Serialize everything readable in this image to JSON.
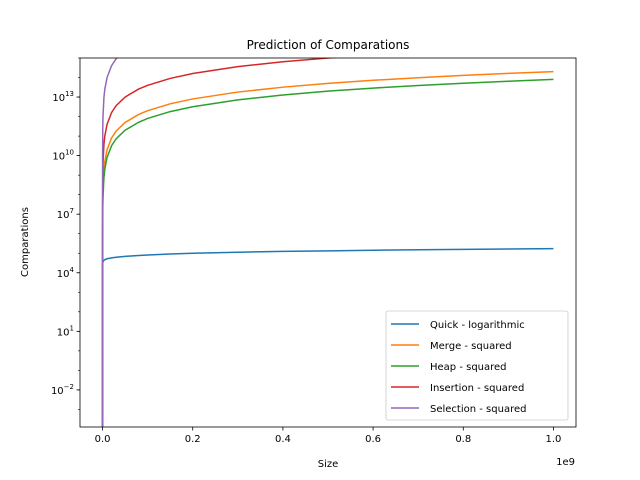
{
  "chart_data": {
    "type": "line",
    "title": "Prediction of Comparations",
    "xlabel": "Size",
    "ylabel": "Comparations",
    "x_offset_label": "1e9",
    "xlim": [
      -0.05,
      1.05
    ],
    "ylim_log10": [
      -3.9,
      15.0
    ],
    "y_scale": "log",
    "grid": false,
    "legend_position": "lower-right",
    "x_ticks": [
      {
        "value": 0.0,
        "label": "0.0"
      },
      {
        "value": 0.2,
        "label": "0.2"
      },
      {
        "value": 0.4,
        "label": "0.4"
      },
      {
        "value": 0.6,
        "label": "0.6"
      },
      {
        "value": 0.8,
        "label": "0.8"
      },
      {
        "value": 1.0,
        "label": "1.0"
      }
    ],
    "y_ticks": [
      {
        "exp": 13,
        "base": "10",
        "sup": "13"
      },
      {
        "exp": 10,
        "base": "10",
        "sup": "10"
      },
      {
        "exp": 7,
        "base": "10",
        "sup": "7"
      },
      {
        "exp": 4,
        "base": "10",
        "sup": "4"
      },
      {
        "exp": 1,
        "base": "10",
        "sup": "1"
      },
      {
        "exp": -2,
        "base": "10",
        "sup": "−2"
      }
    ],
    "x": [
      0.0001,
      0.0005,
      0.001,
      0.003,
      0.005,
      0.01,
      0.02,
      0.03,
      0.05,
      0.08,
      0.1,
      0.15,
      0.2,
      0.3,
      0.4,
      0.5,
      0.6,
      0.7,
      0.8,
      0.9,
      1.0
    ],
    "series": [
      {
        "name": "Quick - logarithmic",
        "color": "#1f77b4",
        "values": [
          27000,
          33000,
          36000,
          43000,
          47000,
          52000,
          58000,
          62000,
          69000,
          77000,
          81000,
          92000,
          100000,
          113000,
          124000,
          133000,
          142000,
          150000,
          158000,
          166000,
          173000
        ]
      },
      {
        "name": "Merge - squared",
        "color": "#ff7f0e",
        "values": [
          2000000.0,
          50000000.0,
          200000000.0,
          1800000000.0,
          5000000000.0,
          20000000000.0,
          80000000000.0,
          180000000000.0,
          500000000000.0,
          1280000000000.0,
          2000000000000.0,
          4500000000000.0,
          8000000000000.0,
          18000000000000.0,
          32000000000000.0,
          50000000000000.0,
          72000000000000.0,
          98000000000000.0,
          128000000000000.0,
          162000000000000.0,
          200000000000000.0
        ]
      },
      {
        "name": "Heap - squared",
        "color": "#2ca02c",
        "values": [
          800000.0,
          20000000.0,
          80000000.0,
          720000000.0,
          2000000000.0,
          8000000000.0,
          32000000000.0,
          72000000000.0,
          200000000000.0,
          510000000000.0,
          800000000000.0,
          1800000000000.0,
          3200000000000.0,
          7200000000000.0,
          12800000000000.0,
          20000000000000.0,
          28800000000000.0,
          39200000000000.0,
          51200000000000.0,
          64800000000000.0,
          80000000000000.0
        ]
      },
      {
        "name": "Insertion - squared",
        "color": "#d62728",
        "values": [
          40000000.0,
          1000000000.0,
          4000000000.0,
          36000000000.0,
          100000000000.0,
          400000000000.0,
          1600000000000.0,
          3600000000000.0,
          10000000000000.0,
          25600000000000.0,
          40000000000000.0,
          90000000000000.0,
          160000000000000.0,
          360000000000000.0,
          640000000000000.0,
          1000000000000000.0,
          1440000000000000.0,
          1960000000000000.0,
          2560000000000000.0,
          3240000000000000.0,
          4000000000000000.0
        ]
      },
      {
        "name": "Selection - squared",
        "color": "#9467bd",
        "values": [
          10000000000.0,
          250000000000.0,
          1000000000000.0,
          9000000000000.0,
          25000000000000.0,
          100000000000000.0,
          400000000000000.0,
          900000000000000.0,
          2500000000000000.0,
          6400000000000000.0,
          1e+16,
          2.25e+16,
          4e+16,
          9e+16,
          1.6e+17,
          2.5e+17,
          3.6e+17,
          4.9e+17,
          6.4e+17,
          8.1e+17,
          1e+18
        ]
      }
    ]
  }
}
